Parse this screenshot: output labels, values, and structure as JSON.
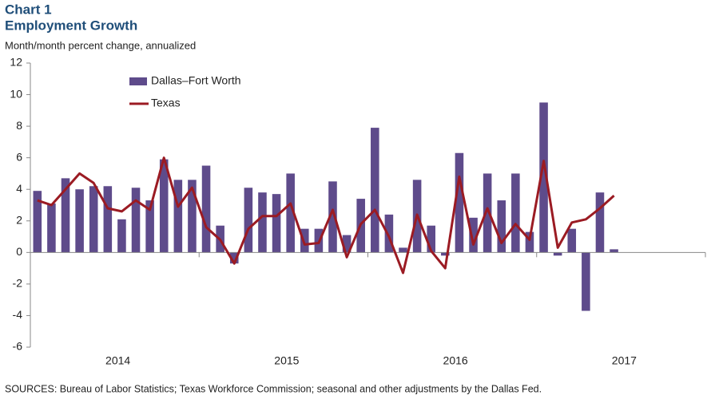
{
  "chart_data": {
    "type": "bar_line",
    "title": "Chart 1",
    "subtitle": "Employment Growth",
    "ylabel": "Month/month percent change, annualized",
    "source": "SOURCES: Bureau of  Labor Statistics; Texas Workforce Commission; seasonal and other adjustments by the Dallas Fed.",
    "categories": [
      null,
      null,
      null,
      null,
      null,
      null,
      null,
      null,
      null,
      null,
      null,
      null,
      null,
      null,
      null,
      null,
      null,
      null,
      null,
      null,
      null,
      null,
      null,
      null,
      null,
      null,
      null,
      null,
      null,
      null,
      null,
      null,
      null,
      null,
      null,
      null,
      null,
      null,
      null,
      null,
      null,
      null
    ],
    "year_labels": [
      "2014",
      "2015",
      "2016",
      "2017"
    ],
    "series": [
      {
        "name": "Dallas–Fort Worth",
        "type": "bar",
        "color": "#5e4b8b",
        "values": [
          3.9,
          3.1,
          4.7,
          4.0,
          4.2,
          4.2,
          2.1,
          4.1,
          3.3,
          5.9,
          4.6,
          4.6,
          5.5,
          1.7,
          -0.7,
          4.1,
          3.8,
          3.7,
          5.0,
          1.5,
          1.5,
          4.5,
          1.1,
          3.4,
          7.9,
          2.4,
          0.3,
          4.6,
          1.7,
          -0.2,
          6.3,
          2.2,
          5.0,
          3.3,
          5.0,
          1.3,
          9.5,
          -0.2,
          1.5,
          -3.7,
          3.8,
          0.2
        ]
      },
      {
        "name": "Texas",
        "type": "line",
        "color": "#9b1b23",
        "values": [
          3.3,
          3.0,
          4.0,
          5.0,
          4.4,
          2.8,
          2.6,
          3.3,
          2.7,
          6.0,
          2.9,
          4.1,
          1.6,
          0.8,
          -0.7,
          1.5,
          2.3,
          2.3,
          3.1,
          0.5,
          0.6,
          2.7,
          -0.3,
          1.8,
          2.7,
          1.0,
          -1.3,
          2.4,
          0.1,
          -1.0,
          4.8,
          0.5,
          2.8,
          0.6,
          1.8,
          0.8,
          5.8,
          0.3,
          1.9,
          2.1,
          2.8,
          3.6
        ]
      }
    ],
    "ylim": [
      -6,
      12
    ],
    "yticks": [
      -6,
      -4,
      -2,
      0,
      2,
      4,
      6,
      8,
      10,
      12
    ],
    "grid": false,
    "legend": "upper-left"
  }
}
